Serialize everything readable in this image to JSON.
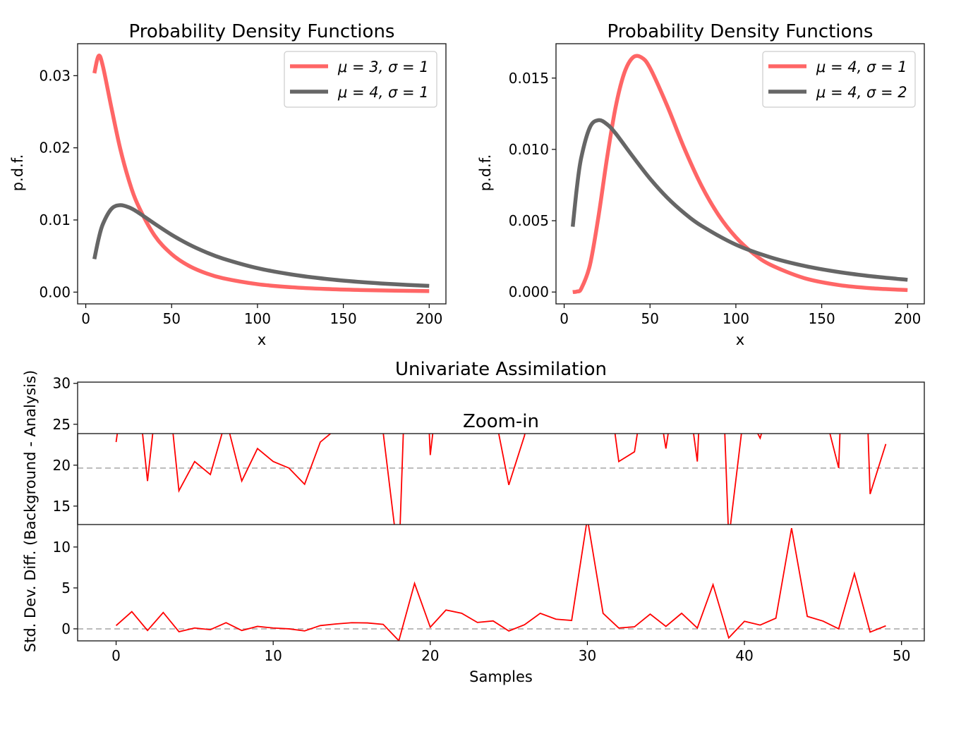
{
  "chart_data": [
    {
      "type": "line",
      "title": "Probability Density Functions",
      "xlabel": "x",
      "ylabel": "p.d.f.",
      "xlim": [
        -4.75,
        209.75
      ],
      "ylim": [
        -0.00163,
        0.03443
      ],
      "xticks": [
        0,
        50,
        100,
        150,
        200
      ],
      "xtick_labels": [
        "0",
        "50",
        "100",
        "150",
        "200"
      ],
      "yticks": [
        0,
        0.01,
        0.02,
        0.03
      ],
      "ytick_labels": [
        "0.00",
        "0.01",
        "0.02",
        "0.03"
      ],
      "grid": false,
      "legend_position": "upper-right",
      "series": [
        {
          "name": "μ = 3, σ = 1",
          "color": "#ff6666",
          "x": [
            5,
            7.5,
            10,
            15,
            20,
            25,
            30,
            40,
            50,
            60,
            70,
            80,
            100,
            120,
            140,
            160,
            180,
            200
          ],
          "y": [
            0.03034,
            0.03275,
            0.03128,
            0.02549,
            0.01995,
            0.01558,
            0.01227,
            0.00787,
            0.005265,
            0.003654,
            0.002614,
            0.001919,
            0.0011,
            0.000673,
            0.000433,
            0.00029,
            0.0002,
            0.000142
          ]
        },
        {
          "name": "μ = 4, σ = 1",
          "color": "#666666",
          "x": [
            5,
            7.5,
            10,
            15,
            20,
            25,
            30,
            40,
            50,
            60,
            70,
            80,
            100,
            120,
            140,
            160,
            180,
            200
          ],
          "y": [
            0.00458,
            0.00741,
            0.00945,
            0.01155,
            0.01205,
            0.01176,
            0.01112,
            0.0095,
            0.00795,
            0.00662,
            0.00553,
            0.00464,
            0.00332,
            0.00244,
            0.00183,
            0.0014,
            0.00109,
            0.00086
          ]
        }
      ]
    },
    {
      "type": "line",
      "title": "Probability Density Functions",
      "xlabel": "x",
      "ylabel": "p.d.f.",
      "xlim": [
        -4.75,
        209.75
      ],
      "ylim": [
        -0.00083,
        0.01741
      ],
      "xticks": [
        0,
        50,
        100,
        150,
        200
      ],
      "xtick_labels": [
        "0",
        "50",
        "100",
        "150",
        "200"
      ],
      "yticks": [
        0,
        0.005,
        0.01,
        0.015
      ],
      "ytick_labels": [
        "0.000",
        "0.005",
        "0.010",
        "0.015"
      ],
      "grid": false,
      "legend_position": "upper-right",
      "series": [
        {
          "name": "μ = 4, σ = 1",
          "color": "#ff6666",
          "x": [
            5,
            7.5,
            10,
            15,
            20,
            25,
            30,
            35,
            40,
            45,
            50,
            60,
            70,
            80,
            90,
            100,
            110,
            120,
            140,
            160,
            180,
            200
          ],
          "y": [
            0.0,
            4e-05,
            0.00025,
            0.00189,
            0.00531,
            0.00942,
            0.01298,
            0.01535,
            0.01644,
            0.01645,
            0.01571,
            0.01306,
            0.01007,
            0.00745,
            0.00538,
            0.00384,
            0.00272,
            0.00192,
            0.00097,
            0.00049,
            0.000257,
            0.000137
          ]
        },
        {
          "name": "μ = 4, σ = 2",
          "color": "#666666",
          "x": [
            5,
            7.5,
            10,
            15,
            20,
            25,
            30,
            40,
            50,
            60,
            70,
            80,
            100,
            120,
            140,
            160,
            180,
            200
          ],
          "y": [
            0.00458,
            0.00741,
            0.00945,
            0.01155,
            0.01205,
            0.01176,
            0.01112,
            0.0095,
            0.00795,
            0.00662,
            0.00553,
            0.00464,
            0.00332,
            0.00244,
            0.00183,
            0.0014,
            0.00109,
            0.00086
          ]
        }
      ]
    },
    {
      "type": "line",
      "title": "Univariate Assimilation",
      "xlabel": "Samples",
      "ylabel": "Std. Dev. Diff. (Background - Analysis)",
      "xlim": [
        -2.45,
        51.45
      ],
      "ylim": [
        -1.47,
        30.15
      ],
      "xticks": [
        0,
        10,
        20,
        30,
        40,
        50
      ],
      "xtick_labels": [
        "0",
        "10",
        "20",
        "30",
        "40",
        "50"
      ],
      "yticks": [
        0,
        5,
        10,
        15,
        20,
        25,
        30
      ],
      "ytick_labels": [
        "0",
        "5",
        "10",
        "15",
        "20",
        "25",
        "30"
      ],
      "grid": false,
      "reference_line": {
        "y": 0,
        "style": "dashed",
        "color": "#bbbbbb"
      },
      "series": [
        {
          "color": "#ff0000",
          "x": [
            0,
            1,
            2,
            3,
            4,
            5,
            6,
            7,
            8,
            9,
            10,
            11,
            12,
            13,
            14,
            15,
            16,
            17,
            18,
            19,
            20,
            21,
            22,
            23,
            24,
            25,
            26,
            27,
            28,
            29,
            30,
            31,
            32,
            33,
            34,
            35,
            36,
            37,
            38,
            39,
            40,
            41,
            42,
            43,
            44,
            45,
            46,
            47,
            48,
            49
          ],
          "y": [
            0.4,
            2.1,
            -0.2,
            2.0,
            -0.35,
            0.1,
            -0.1,
            0.75,
            -0.2,
            0.3,
            0.1,
            0.0,
            -0.25,
            0.4,
            0.6,
            0.75,
            0.72,
            0.55,
            -1.45,
            5.55,
            0.2,
            2.3,
            1.9,
            0.78,
            0.97,
            -0.26,
            0.5,
            1.9,
            1.18,
            1.03,
            13.5,
            1.9,
            0.1,
            0.25,
            1.8,
            0.3,
            1.9,
            0.1,
            5.4,
            -1.1,
            0.92,
            0.46,
            1.3,
            12.3,
            1.52,
            0.95,
            0.0,
            6.75,
            -0.4,
            0.37
          ]
        }
      ],
      "inset": {
        "title": "Zoom-in",
        "ylim": [
          -0.87,
          0.53
        ],
        "reference_line": {
          "y": 0,
          "style": "dashed",
          "color": "#bbbbbb"
        }
      }
    }
  ]
}
